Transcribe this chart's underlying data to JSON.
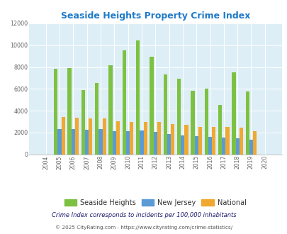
{
  "title": "Seaside Heights Property Crime Index",
  "years": [
    2004,
    2005,
    2006,
    2007,
    2008,
    2009,
    2010,
    2011,
    2012,
    2013,
    2014,
    2015,
    2016,
    2017,
    2018,
    2019,
    2020
  ],
  "seaside_heights": [
    0,
    7850,
    7900,
    5900,
    6550,
    8200,
    9550,
    10450,
    8950,
    7300,
    6950,
    5850,
    6050,
    4550,
    7500,
    5750,
    0
  ],
  "new_jersey": [
    0,
    2350,
    2350,
    2250,
    2350,
    2100,
    2150,
    2200,
    2050,
    1900,
    1750,
    1650,
    1600,
    1550,
    1450,
    1350,
    0
  ],
  "national": [
    0,
    3450,
    3350,
    3300,
    3300,
    3050,
    3000,
    3000,
    2950,
    2800,
    2700,
    2500,
    2500,
    2500,
    2450,
    2150,
    0
  ],
  "colors": {
    "seaside": "#7dc142",
    "nj": "#5b9bd5",
    "national": "#f0a830"
  },
  "ylim": [
    0,
    12000
  ],
  "yticks": [
    0,
    2000,
    4000,
    6000,
    8000,
    10000,
    12000
  ],
  "bg_color": "#ddeef6",
  "grid_color": "#ffffff",
  "title_color": "#1f7ac9",
  "legend_labels": [
    "Seaside Heights",
    "New Jersey",
    "National"
  ],
  "footnote1": "Crime Index corresponds to incidents per 100,000 inhabitants",
  "footnote2": "© 2025 CityRating.com - https://www.cityrating.com/crime-statistics/",
  "footnote1_color": "#1a1a6e",
  "footnote2_color": "#555555",
  "bar_width": 0.27
}
